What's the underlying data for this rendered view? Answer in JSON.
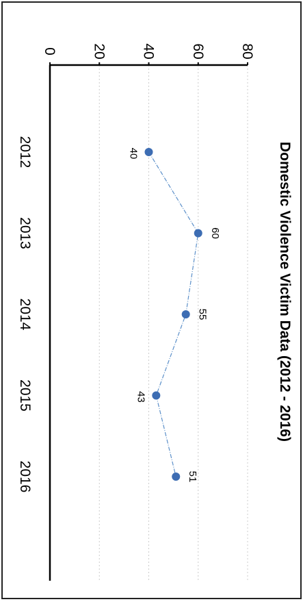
{
  "chart_data": {
    "type": "line",
    "title": "Domestic Violence Victim Data (2012 - 2016)",
    "xlabel": "",
    "ylabel": "",
    "categories": [
      "2012",
      "2013",
      "2014",
      "2015",
      "2016"
    ],
    "series": [
      {
        "values": [
          40,
          60,
          55,
          43,
          51
        ]
      }
    ],
    "data_labels": [
      "40",
      "60",
      "55",
      "43",
      "51"
    ],
    "ylim": [
      0,
      80
    ],
    "yticks": [
      "0",
      "20",
      "40",
      "60",
      "80"
    ],
    "grid": true,
    "legend": "none",
    "orientation": "rotated-90-clockwise",
    "colors": {
      "line": "#5b8fc9",
      "marker": "#3d6db3",
      "axis": "#000000",
      "grid": "#cccccc"
    }
  }
}
